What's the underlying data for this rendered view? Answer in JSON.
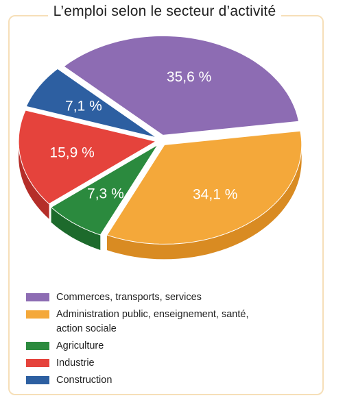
{
  "chart_data": {
    "type": "pie",
    "title": "L’emploi selon le secteur d’activité",
    "slices": [
      {
        "name": "Administration public, enseignement, santé, action sociale",
        "value": 34.1,
        "label": "34,1 %",
        "color": "#f4a83a",
        "side": "#d98b22"
      },
      {
        "name": "Agriculture",
        "value": 7.3,
        "label": "7,3 %",
        "color": "#2b8a3e",
        "side": "#1d6a2c"
      },
      {
        "name": "Industrie",
        "value": 15.9,
        "label": "15,9 %",
        "color": "#e5433c",
        "side": "#b52e29"
      },
      {
        "name": "Construction",
        "value": 7.1,
        "label": "7,1 %",
        "color": "#2d5fa1",
        "side": "#1f4680"
      },
      {
        "name": "Commerces, transports, services",
        "value": 35.6,
        "label": "35,6 %",
        "color": "#8d6cb3",
        "side": "#6d5193"
      }
    ],
    "legend": [
      {
        "label": "Commerces, transports, services",
        "color": "#8d6cb3"
      },
      {
        "label": "Administration public, enseignement, santé, action sociale",
        "color": "#f4a83a"
      },
      {
        "label": "Agriculture",
        "color": "#2b8a3e"
      },
      {
        "label": "Industrie",
        "color": "#e5433c"
      },
      {
        "label": "Construction",
        "color": "#2d5fa1"
      }
    ],
    "legend_position": "bottom-left"
  }
}
